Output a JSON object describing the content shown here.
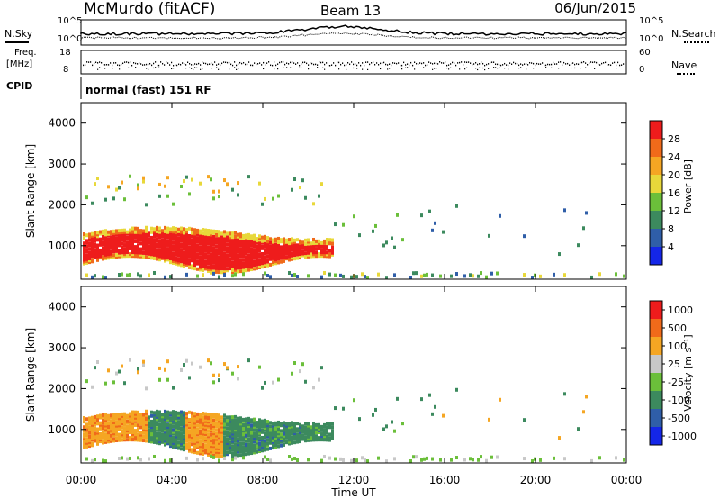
{
  "header": {
    "station": "McMurdo (fitACF)",
    "beam": "Beam 13",
    "date": "06/Jun/2015"
  },
  "status_panel": {
    "nsky_label": "N.Sky",
    "nsearch_label": "N.Search",
    "noise_scale_top": "10^5",
    "noise_scale_bottom": "10^0",
    "freq_label_1": "Freq.",
    "freq_label_2": "[MHz]",
    "freq_top": "18",
    "freq_bottom": "8",
    "nave_label": "Nave",
    "nave_top": "60",
    "nave_bottom": "0",
    "cpid_label": "CPID",
    "cpid_value": "normal (fast) 151 RF"
  },
  "chart_data": [
    {
      "type": "heatmap",
      "name": "power",
      "ylabel": "Slant Range [km]",
      "ylim": [
        180,
        4500
      ],
      "y_ticks": [
        "1000",
        "2000",
        "3000",
        "4000"
      ],
      "x_ticks": [],
      "colorbar_label": "Power [dB]",
      "colorbar_ticks": [
        "4",
        "8",
        "12",
        "16",
        "20",
        "24",
        "28"
      ],
      "colorbar_colors": [
        "#1426e8",
        "#2f5ea8",
        "#3c8a5e",
        "#6bbf3a",
        "#e8d83a",
        "#f5a623",
        "#f06a1a",
        "#ee1c1c"
      ]
    },
    {
      "type": "heatmap",
      "name": "velocity",
      "ylabel": "Slant Range [km]",
      "xlabel": "Time UT",
      "ylim": [
        180,
        4500
      ],
      "y_ticks": [
        "1000",
        "2000",
        "3000",
        "4000"
      ],
      "x_ticks": [
        "00:00",
        "04:00",
        "08:00",
        "12:00",
        "16:00",
        "20:00",
        "00:00"
      ],
      "colorbar_label": "Velocity [m s⁻¹]",
      "colorbar_ticks": [
        "1000",
        "500",
        "100",
        "25",
        "-25",
        "-100",
        "-500",
        "-1000"
      ],
      "colorbar_colors": [
        "#1426e8",
        "#2f5ea8",
        "#3c8a5e",
        "#6bbf3a",
        "#c8c8c8",
        "#f5a623",
        "#f06a1a",
        "#ee1c1c"
      ]
    }
  ]
}
